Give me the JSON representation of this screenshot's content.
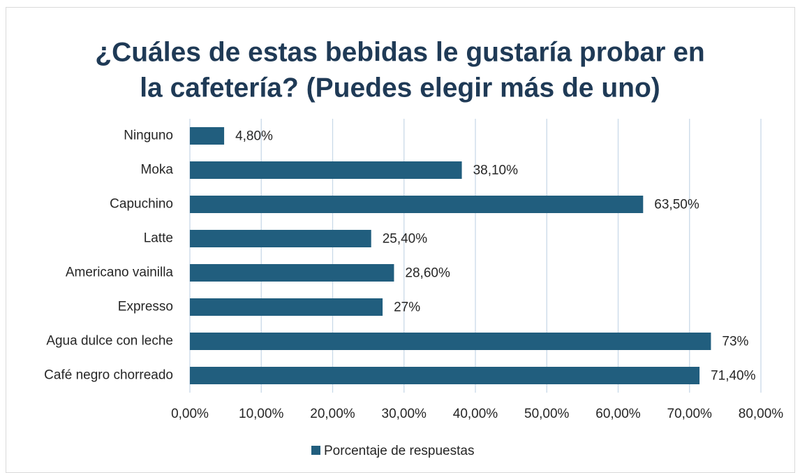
{
  "chart_data": {
    "type": "bar",
    "orientation": "horizontal",
    "title": [
      "¿Cuáles de estas bebidas le gustaría probar en",
      "la cafetería? (Puedes elegir más de uno)"
    ],
    "categories": [
      "Ninguno",
      "Moka",
      "Capuchino",
      "Latte",
      "Americano vainilla",
      "Expresso",
      "Agua dulce con leche",
      "Café negro chorreado"
    ],
    "series": [
      {
        "name": "Porcentaje de respuestas",
        "color": "#215e7e",
        "values": [
          4.8,
          38.1,
          63.5,
          25.4,
          28.6,
          27,
          73,
          71.4
        ],
        "value_labels": [
          "4,80%",
          "38,10%",
          "63,50%",
          "25,40%",
          "28,60%",
          "27%",
          "73%",
          "71,40%"
        ]
      }
    ],
    "xlim": [
      0,
      80
    ],
    "xticks": [
      {
        "value": 0,
        "label": "0,00%"
      },
      {
        "value": 10,
        "label": "10,00%"
      },
      {
        "value": 20,
        "label": "20,00%"
      },
      {
        "value": 30,
        "label": "30,00%"
      },
      {
        "value": 40,
        "label": "40,00%"
      },
      {
        "value": 50,
        "label": "50,00%"
      },
      {
        "value": 60,
        "label": "60,00%"
      },
      {
        "value": 70,
        "label": "70,00%"
      },
      {
        "value": 80,
        "label": "80,00%"
      }
    ],
    "grid": true,
    "legend": "bottom"
  }
}
